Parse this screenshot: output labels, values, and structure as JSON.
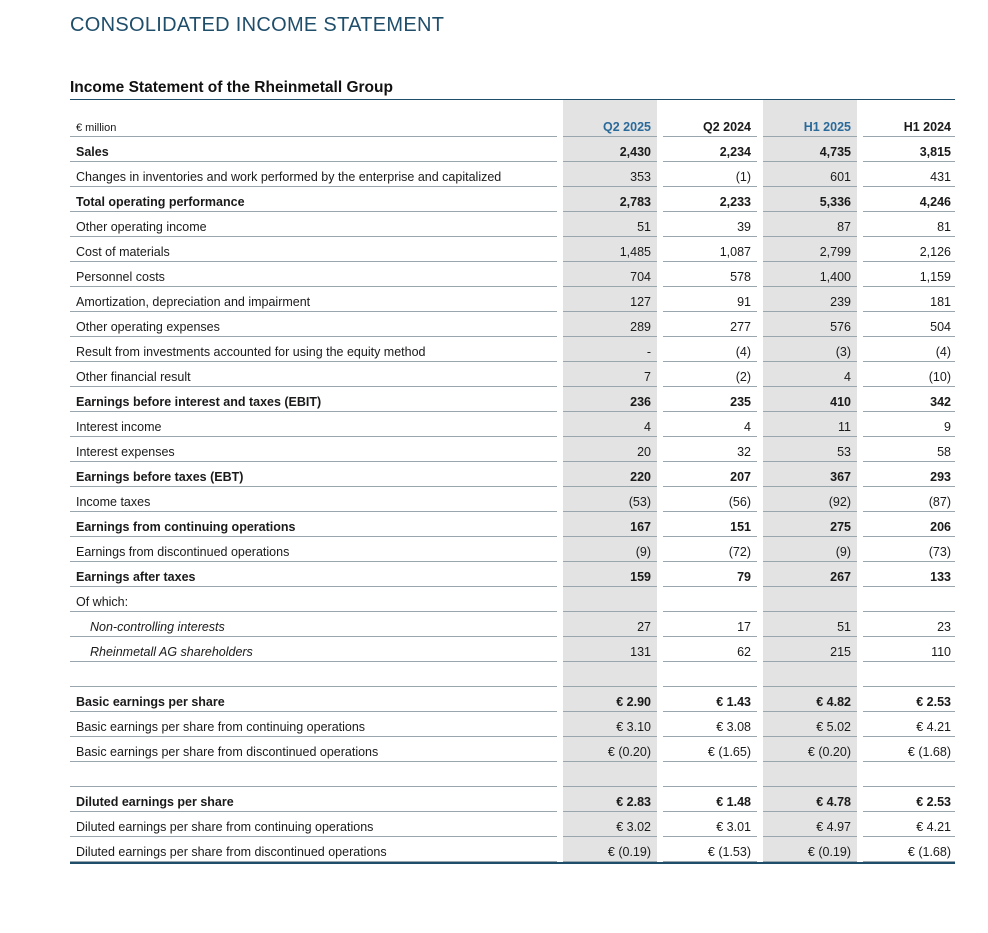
{
  "page_title": "CONSOLIDATED INCOME STATEMENT",
  "section_title": "Income Statement of the Rheinmetall Group",
  "unit_label": "€ million",
  "columns": [
    "Q2 2025",
    "Q2 2024",
    "H1 2025",
    "H1 2024"
  ],
  "rows": [
    {
      "label": "Sales",
      "values": [
        "2,430",
        "2,234",
        "4,735",
        "3,815"
      ],
      "style": "bold"
    },
    {
      "label": "Changes in inventories and work performed by the enterprise and capitalized",
      "values": [
        "353",
        "(1)",
        "601",
        "431"
      ],
      "style": "normal"
    },
    {
      "label": "Total operating performance",
      "values": [
        "2,783",
        "2,233",
        "5,336",
        "4,246"
      ],
      "style": "bold"
    },
    {
      "label": "Other operating income",
      "values": [
        "51",
        "39",
        "87",
        "81"
      ],
      "style": "normal"
    },
    {
      "label": "Cost of materials",
      "values": [
        "1,485",
        "1,087",
        "2,799",
        "2,126"
      ],
      "style": "normal"
    },
    {
      "label": "Personnel costs",
      "values": [
        "704",
        "578",
        "1,400",
        "1,159"
      ],
      "style": "normal"
    },
    {
      "label": "Amortization, depreciation and impairment",
      "values": [
        "127",
        "91",
        "239",
        "181"
      ],
      "style": "normal"
    },
    {
      "label": "Other operating expenses",
      "values": [
        "289",
        "277",
        "576",
        "504"
      ],
      "style": "normal"
    },
    {
      "label": "Result from investments accounted for using the equity method",
      "values": [
        "-",
        "(4)",
        "(3)",
        "(4)"
      ],
      "style": "normal"
    },
    {
      "label": "Other financial result",
      "values": [
        "7",
        "(2)",
        "4",
        "(10)"
      ],
      "style": "normal"
    },
    {
      "label": "Earnings before interest and taxes (EBIT)",
      "values": [
        "236",
        "235",
        "410",
        "342"
      ],
      "style": "bold"
    },
    {
      "label": "Interest income",
      "values": [
        "4",
        "4",
        "11",
        "9"
      ],
      "style": "normal"
    },
    {
      "label": "Interest expenses",
      "values": [
        "20",
        "32",
        "53",
        "58"
      ],
      "style": "normal"
    },
    {
      "label": "Earnings before taxes (EBT)",
      "values": [
        "220",
        "207",
        "367",
        "293"
      ],
      "style": "bold"
    },
    {
      "label": "Income taxes",
      "values": [
        "(53)",
        "(56)",
        "(92)",
        "(87)"
      ],
      "style": "normal"
    },
    {
      "label": "Earnings from continuing operations",
      "values": [
        "167",
        "151",
        "275",
        "206"
      ],
      "style": "bold"
    },
    {
      "label": "Earnings from discontinued operations",
      "values": [
        "(9)",
        "(72)",
        "(9)",
        "(73)"
      ],
      "style": "normal"
    },
    {
      "label": "Earnings after taxes",
      "values": [
        "159",
        "79",
        "267",
        "133"
      ],
      "style": "bold"
    },
    {
      "label": "Of which:",
      "values": [
        "",
        "",
        "",
        ""
      ],
      "style": "normal"
    },
    {
      "label": "Non-controlling interests",
      "values": [
        "27",
        "17",
        "51",
        "23"
      ],
      "style": "italic"
    },
    {
      "label": "Rheinmetall AG shareholders",
      "values": [
        "131",
        "62",
        "215",
        "110"
      ],
      "style": "italic"
    },
    {
      "label": "",
      "values": [
        "",
        "",
        "",
        ""
      ],
      "style": "gap"
    },
    {
      "label": "Basic earnings per share",
      "values": [
        "€ 2.90",
        "€ 1.43",
        "€ 4.82",
        "€ 2.53"
      ],
      "style": "bold"
    },
    {
      "label": "Basic earnings per share from continuing operations",
      "values": [
        "€ 3.10",
        "€ 3.08",
        "€ 5.02",
        "€ 4.21"
      ],
      "style": "normal"
    },
    {
      "label": "Basic earnings per share from discontinued operations",
      "values": [
        "€ (0.20)",
        "€ (1.65)",
        "€ (0.20)",
        "€ (1.68)"
      ],
      "style": "normal"
    },
    {
      "label": "",
      "values": [
        "",
        "",
        "",
        ""
      ],
      "style": "gap"
    },
    {
      "label": "Diluted earnings per share",
      "values": [
        "€ 2.83",
        "€ 1.48",
        "€ 4.78",
        "€ 2.53"
      ],
      "style": "bold"
    },
    {
      "label": "Diluted earnings per share from continuing operations",
      "values": [
        "€ 3.02",
        "€ 3.01",
        "€ 4.97",
        "€ 4.21"
      ],
      "style": "normal"
    },
    {
      "label": "Diluted earnings per share from discontinued operations",
      "values": [
        "€ (0.19)",
        "€ (1.53)",
        "€ (0.19)",
        "€ (1.68)"
      ],
      "style": "normal"
    }
  ],
  "colors": {
    "accent": "#1f4e6b",
    "highlight_column_text": "#2a6a9a",
    "shade": "#e3e3e3"
  }
}
